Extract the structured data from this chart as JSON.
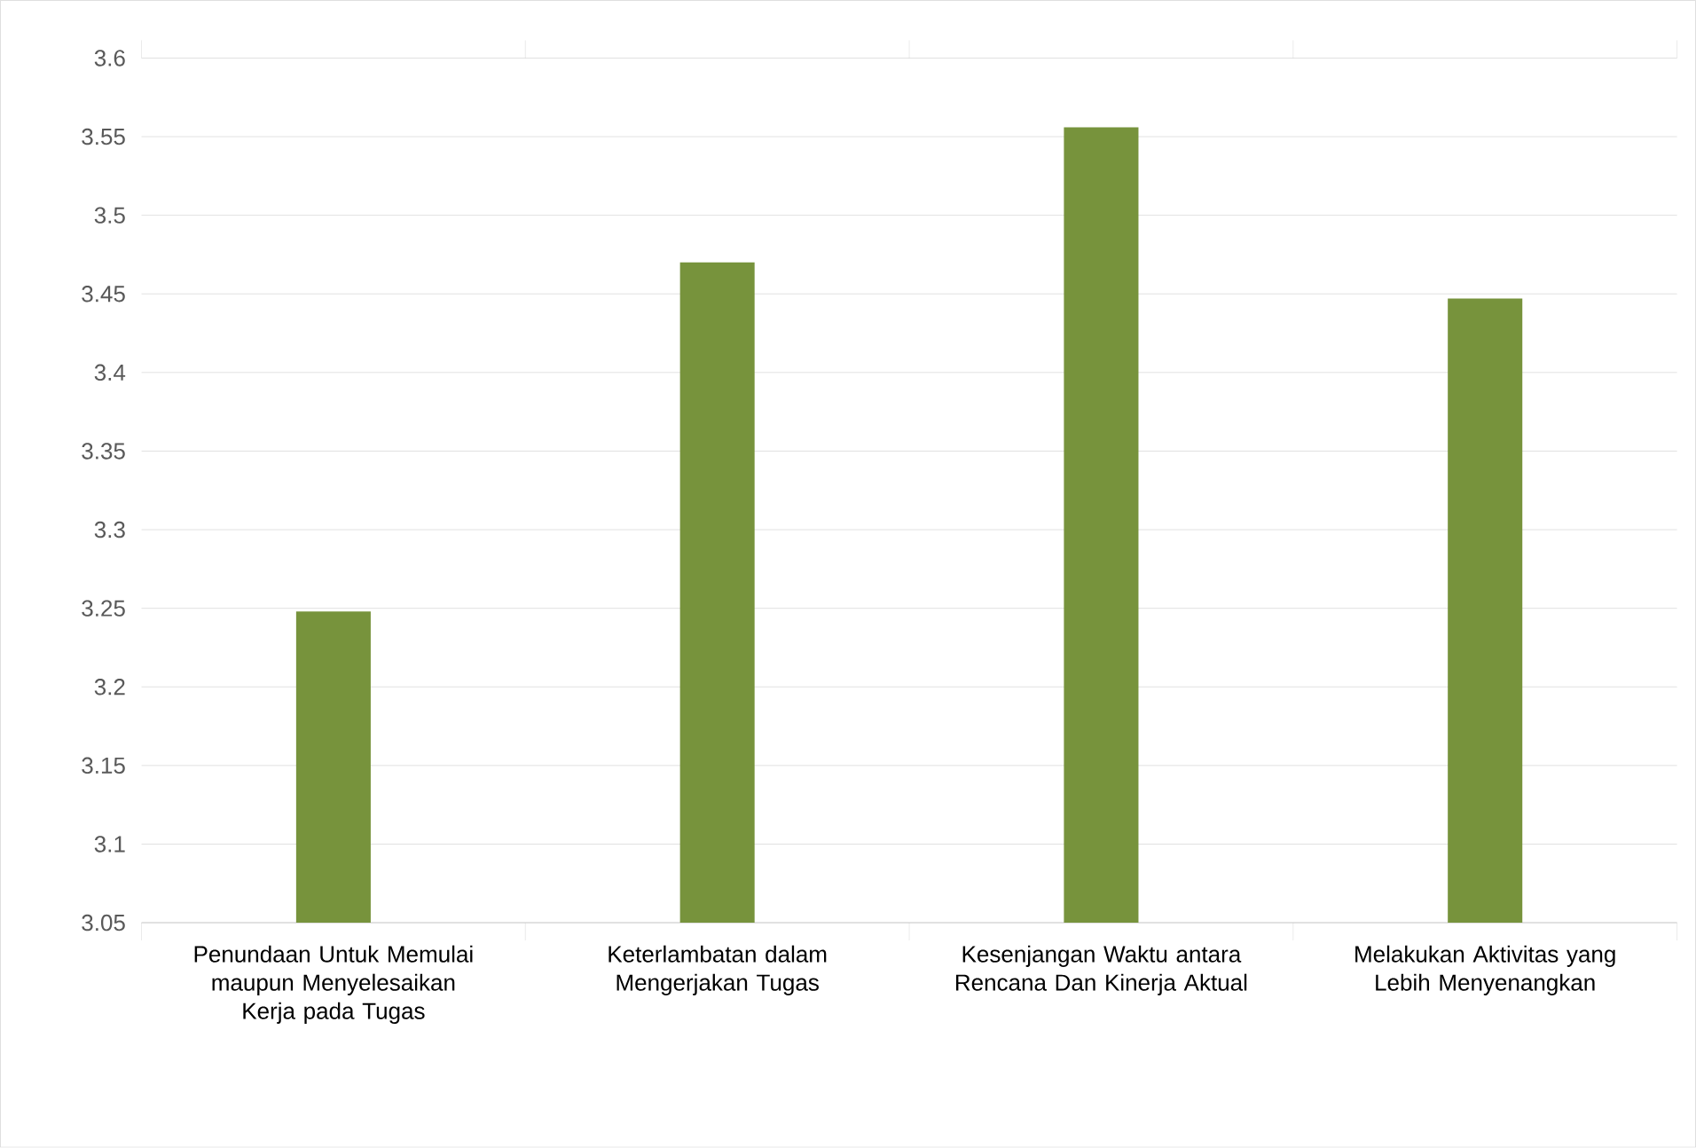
{
  "chart_data": {
    "type": "bar",
    "categories": [
      "Penundaan Untuk Memulai maupun Menyelesaikan Kerja pada Tugas",
      "Keterlambatan dalam Mengerjakan Tugas",
      "Kesenjangan Waktu antara Rencana Dan Kinerja Aktual",
      "Melakukan Aktivitas yang Lebih Menyenangkan"
    ],
    "values": [
      3.248,
      3.47,
      3.556,
      3.447
    ],
    "color": "#77933c",
    "ylim": [
      3.05,
      3.6
    ],
    "yticks": [
      3.05,
      3.1,
      3.15,
      3.2,
      3.25,
      3.3,
      3.35,
      3.4,
      3.45,
      3.5,
      3.55,
      3.6
    ],
    "grid": "y"
  }
}
